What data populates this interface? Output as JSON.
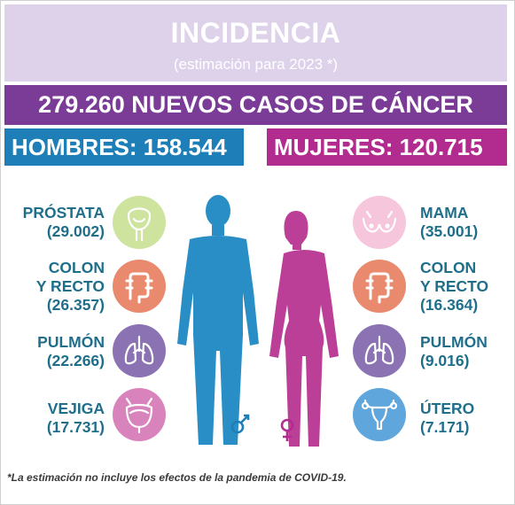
{
  "header": {
    "title": "INCIDENCIA",
    "subtitle": "(estimación para 2023 *)"
  },
  "total_banner": "279.260 NUEVOS CASOS DE CÁNCER",
  "men_banner": "HOMBRES: 158.544",
  "women_banner": "MUJERES: 120.715",
  "men": [
    {
      "lines": [
        "PRÓSTATA"
      ],
      "count": "(29.002)",
      "icon": "prostate-icon",
      "color": "#cde39e"
    },
    {
      "lines": [
        "COLON",
        "Y RECTO"
      ],
      "count": "(26.357)",
      "icon": "colon-icon",
      "color": "#e98a6f"
    },
    {
      "lines": [
        "PULMÓN"
      ],
      "count": "(22.266)",
      "icon": "lungs-icon",
      "color": "#8a72b3"
    },
    {
      "lines": [
        "VEJIGA"
      ],
      "count": "(17.731)",
      "icon": "bladder-icon",
      "color": "#d983bd"
    }
  ],
  "women": [
    {
      "lines": [
        "MAMA"
      ],
      "count": "(35.001)",
      "icon": "breast-icon",
      "color": "#f6c7dc"
    },
    {
      "lines": [
        "COLON",
        "Y RECTO"
      ],
      "count": "(16.364)",
      "icon": "colon-icon",
      "color": "#e98a6f"
    },
    {
      "lines": [
        "PULMÓN"
      ],
      "count": "(9.016)",
      "icon": "lungs-icon",
      "color": "#8a72b3"
    },
    {
      "lines": [
        "ÚTERO"
      ],
      "count": "(7.171)",
      "icon": "uterus-icon",
      "color": "#5ea6dc"
    }
  ],
  "colors": {
    "header_bg": "#ddd2ea",
    "total_bg": "#7b3c97",
    "men": "#1e7fb8",
    "women": "#b22b8e",
    "label_text": "#1f6f8b"
  },
  "footnote": "*La estimación no incluye los efectos de la pandemia de COVID-19."
}
